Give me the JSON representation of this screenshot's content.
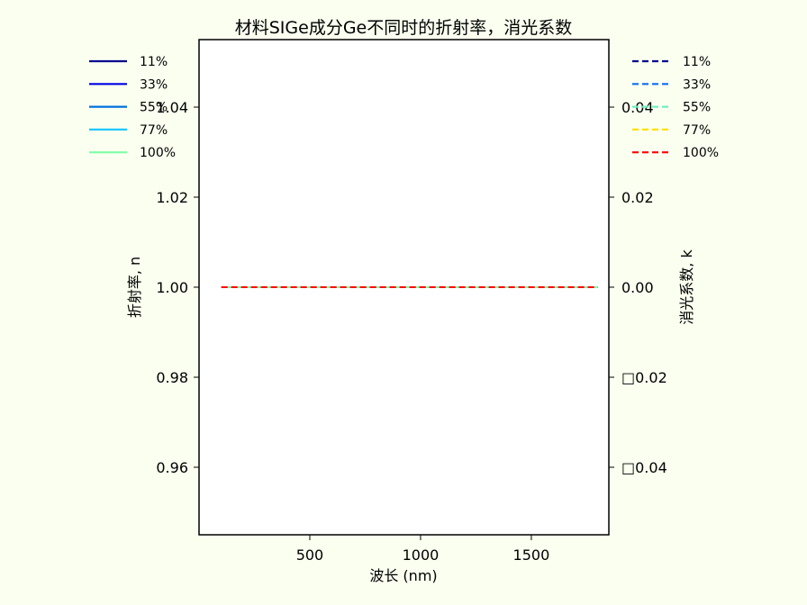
{
  "chart_data": {
    "type": "line",
    "title": "材料SIGe成分Ge不同时的折射率，消光系数",
    "xlabel": "波长 (nm)",
    "ylabel_left": "折射率, n",
    "ylabel_right": "消光系数, k",
    "xlim": [
      0,
      1850
    ],
    "ylim_left": [
      0.945,
      1.055
    ],
    "ylim_right": [
      -0.055,
      0.055
    ],
    "x_ticks": [
      500,
      1000,
      1500
    ],
    "x_tick_labels": [
      "500",
      "1000",
      "1500"
    ],
    "y_left_ticks": [
      0.96,
      0.98,
      1.0,
      1.02,
      1.04
    ],
    "y_left_tick_labels": [
      "0.96",
      "0.98",
      "1.00",
      "1.02",
      "1.04"
    ],
    "y_right_ticks": [
      -0.04,
      -0.02,
      0.0,
      0.02,
      0.04
    ],
    "y_right_tick_labels": [
      "□0.04",
      "□0.02",
      "0.00",
      "0.02",
      "0.04"
    ],
    "x": [
      100,
      1800
    ],
    "series_n": [
      {
        "name": "11%",
        "color": "#00008f",
        "values": [
          1.0,
          1.0
        ]
      },
      {
        "name": "33%",
        "color": "#0000e6",
        "values": [
          1.0,
          1.0
        ]
      },
      {
        "name": "55%",
        "color": "#0070dd",
        "values": [
          1.0,
          1.0
        ]
      },
      {
        "name": "77%",
        "color": "#1fc8ff",
        "values": [
          1.0,
          1.0
        ]
      },
      {
        "name": "100%",
        "color": "#7fffa8",
        "values": [
          1.0,
          1.0
        ]
      }
    ],
    "series_k": [
      {
        "name": "11%",
        "color": "#00008f",
        "values": [
          0.0,
          0.0
        ]
      },
      {
        "name": "33%",
        "color": "#0d6cf5",
        "values": [
          0.0,
          0.0
        ]
      },
      {
        "name": "55%",
        "color": "#6ff0c0",
        "values": [
          0.0,
          0.0
        ]
      },
      {
        "name": "77%",
        "color": "#ffe000",
        "values": [
          0.0,
          0.0
        ]
      },
      {
        "name": "100%",
        "color": "#ff0000",
        "values": [
          0.0,
          0.0
        ]
      }
    ],
    "legend_left_placement": "upper-left outside",
    "legend_right_placement": "upper-right outside",
    "grid": false
  }
}
